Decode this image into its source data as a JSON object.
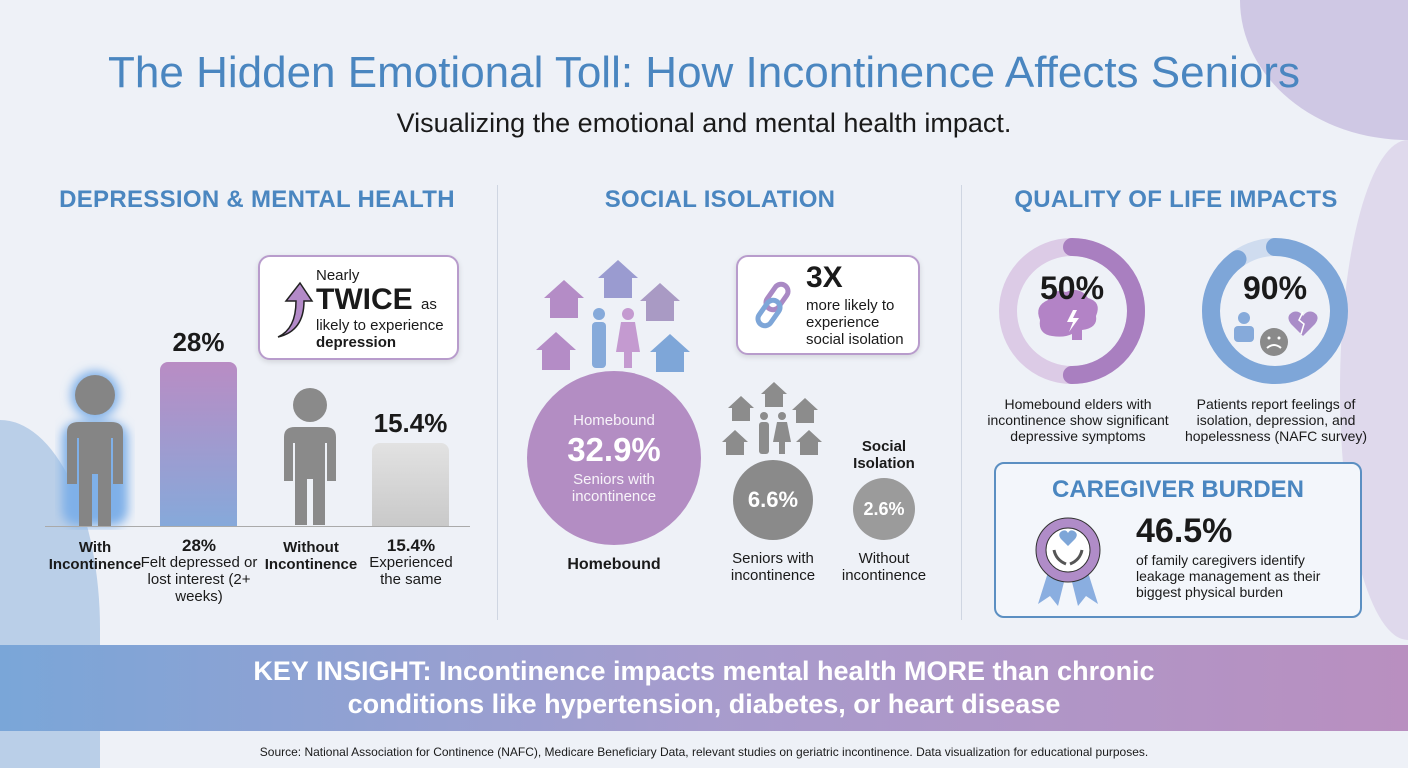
{
  "header": {
    "title": "The Hidden Emotional Toll: How Incontinence Affects Seniors",
    "subtitle": "Visualizing the emotional and mental health impact."
  },
  "depression": {
    "heading": "DEPRESSION & MENTAL HEALTH",
    "callout": {
      "line1": "Nearly",
      "emphasis": "TWICE",
      "suffix": "as",
      "line2": "likely to experience",
      "line3": "depression"
    },
    "groups": [
      {
        "label": "With Incontinence",
        "value_label": "28%",
        "desc_value": "28%",
        "desc": "Felt depressed or lost interest (2+ weeks)"
      },
      {
        "label": "Without Incontinence",
        "value_label": "15.4%",
        "desc_value": "15.4%",
        "desc": "Experienced the same"
      }
    ]
  },
  "social": {
    "heading": "SOCIAL ISOLATION",
    "callout": {
      "big": "3X",
      "text": "more likely to experience social isolation"
    },
    "homebound": {
      "top": "Homebound",
      "value": "32.9%",
      "sub": "Seniors with incontinence",
      "caption": "Homebound"
    },
    "isolation_title": "Social Isolation",
    "with": {
      "value": "6.6%",
      "caption": "Seniors with incontinence"
    },
    "without": {
      "value": "2.6%",
      "caption": "Without incontinence"
    }
  },
  "quality": {
    "heading": "QUALITY OF LIFE IMPACTS",
    "donuts": [
      {
        "value": "50%",
        "caption": "Homebound elders with incontinence show significant depressive symptoms",
        "color": "#a97fc0",
        "track": "#dccbe6"
      },
      {
        "value": "90%",
        "caption": "Patients report feelings of isolation, depression, and hopelessness (NAFC survey)",
        "color": "#7ea6d8",
        "track": "#cfdcef"
      }
    ],
    "caregiver": {
      "heading": "CAREGIVER BURDEN",
      "value": "46.5%",
      "text": "of family caregivers identify leakage management as their biggest physical burden"
    }
  },
  "banner": {
    "line1": "KEY INSIGHT: Incontinence impacts mental health MORE than chronic",
    "line2": "conditions like hypertension, diabetes, or heart disease"
  },
  "source": "Source: National Association for Continence (NAFC), Medicare Beneficiary Data, relevant studies on geriatric incontinence. Data visualization for educational purposes.",
  "chart_data": [
    {
      "type": "bar",
      "categories": [
        "With Incontinence",
        "Without Incontinence"
      ],
      "values": [
        28,
        15.4
      ],
      "unit": "%"
    },
    {
      "type": "pie",
      "values": [
        50,
        90
      ],
      "unit": "%"
    }
  ]
}
